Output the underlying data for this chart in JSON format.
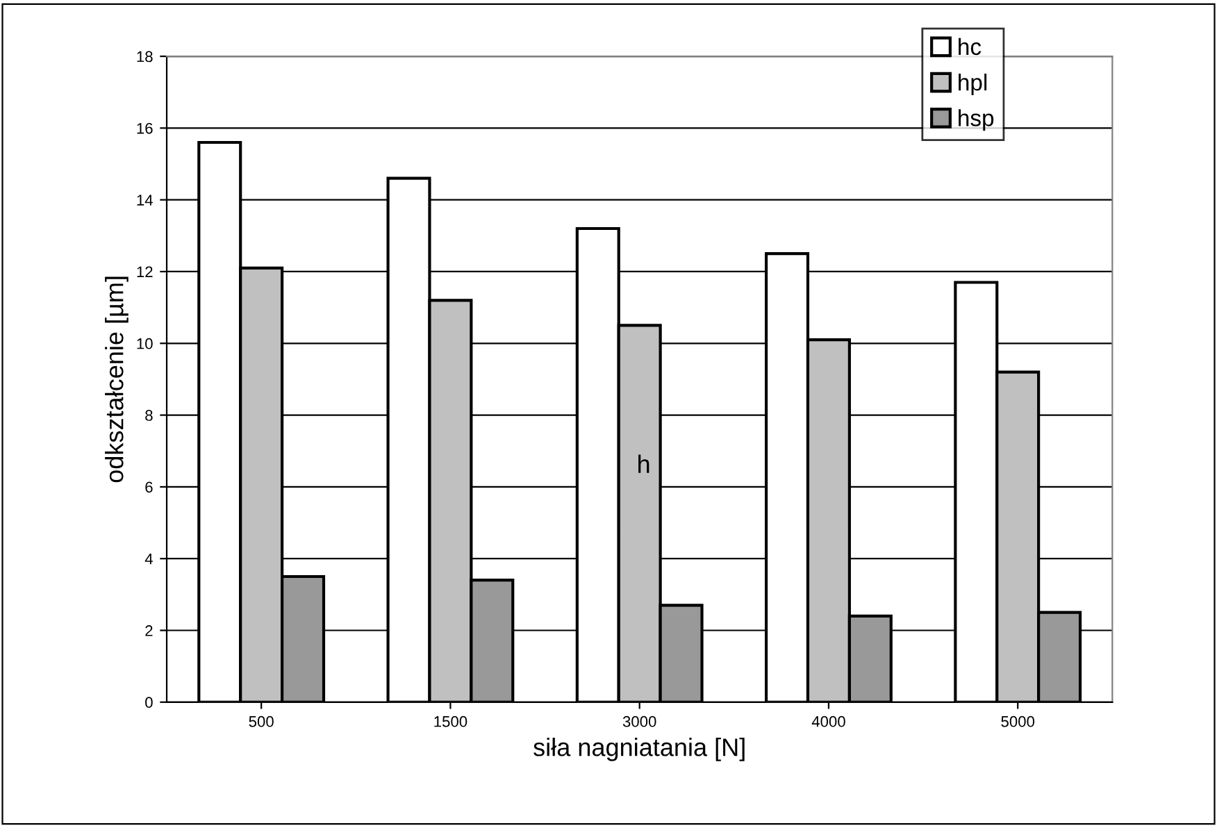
{
  "chart_data": {
    "type": "bar",
    "xlabel": "siła nagniatania [N]",
    "ylabel": "odkształcenie [µm]",
    "categories": [
      "500",
      "1500",
      "3000",
      "4000",
      "5000"
    ],
    "series": [
      {
        "name": "hc",
        "color": "#ffffff",
        "values": [
          15.6,
          14.6,
          13.2,
          12.5,
          11.7
        ]
      },
      {
        "name": "hpl",
        "color": "#c0c0c0",
        "values": [
          12.1,
          11.2,
          10.5,
          10.1,
          9.2
        ]
      },
      {
        "name": "hsp",
        "color": "#999999",
        "values": [
          3.5,
          3.4,
          2.7,
          2.4,
          2.5
        ]
      }
    ],
    "ylim": [
      0,
      18
    ],
    "yticks": [
      0,
      2,
      4,
      6,
      8,
      10,
      12,
      14,
      16,
      18
    ],
    "grid": "y",
    "legend": "top right",
    "annotations": [
      "h"
    ]
  }
}
